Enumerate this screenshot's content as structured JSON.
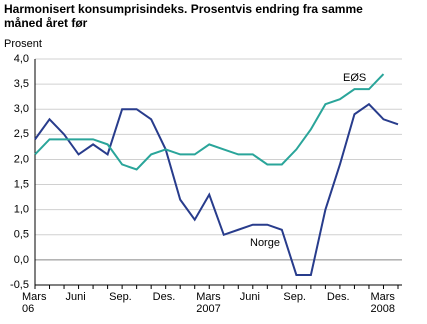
{
  "chart_data": {
    "type": "line",
    "title": "Harmonisert konsumprisindeks. Prosentvis endring fra samme måned året før",
    "y_label": "Prosent",
    "categories": [
      "Mars\n06",
      null,
      null,
      "Juni",
      null,
      null,
      "Sep.",
      null,
      null,
      "Des.",
      null,
      null,
      "Mars\n2007",
      null,
      null,
      "Juni",
      null,
      null,
      "Sep.",
      null,
      null,
      "Des.",
      null,
      null,
      "Mars\n2008",
      null
    ],
    "series": [
      {
        "name": "Norge",
        "color": "#283c8c",
        "values": [
          2.4,
          2.8,
          2.5,
          2.1,
          2.3,
          2.1,
          3.0,
          3.0,
          2.8,
          2.2,
          1.2,
          0.8,
          1.3,
          0.5,
          0.6,
          0.7,
          0.7,
          0.6,
          -0.3,
          -0.3,
          1.0,
          1.9,
          2.9,
          3.1,
          2.8,
          2.7
        ]
      },
      {
        "name": "EØS",
        "color": "#2aa59a",
        "values": [
          2.1,
          2.4,
          2.4,
          2.4,
          2.4,
          2.3,
          1.9,
          1.8,
          2.1,
          2.2,
          2.1,
          2.1,
          2.3,
          2.2,
          2.1,
          2.1,
          1.9,
          1.9,
          2.2,
          2.6,
          3.1,
          3.2,
          3.4,
          3.4,
          3.7,
          null
        ]
      }
    ],
    "ylim": [
      -0.5,
      4.0
    ],
    "yticks": [
      {
        "value": -0.5,
        "label": "-0,5"
      },
      {
        "value": 0,
        "label": "0,0"
      },
      {
        "value": 0.5,
        "label": "0,5"
      },
      {
        "value": 1.0,
        "label": "1,0"
      },
      {
        "value": 1.5,
        "label": "1,5"
      },
      {
        "value": 2.0,
        "label": "2,0"
      },
      {
        "value": 2.5,
        "label": "2,5"
      },
      {
        "value": 3.0,
        "label": "3,0"
      },
      {
        "value": 3.5,
        "label": "3,5"
      },
      {
        "value": 4.0,
        "label": "4,0"
      }
    ],
    "grid": true
  }
}
